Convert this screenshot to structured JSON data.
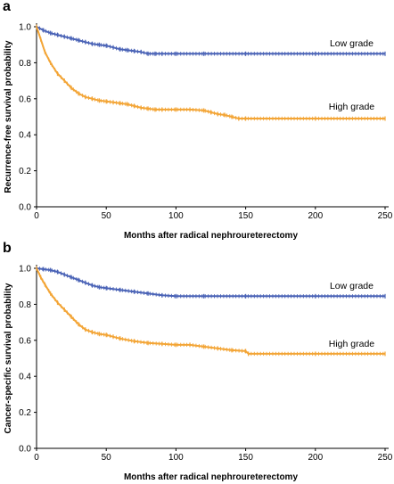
{
  "chart_data": [
    {
      "panel": "a",
      "type": "line",
      "xlabel": "Months after radical nephroureterectomy",
      "ylabel": "Recurrence-free survival probability",
      "xlim": [
        0,
        250
      ],
      "ylim": [
        0,
        1.0
      ],
      "x_ticks": [
        "0",
        "50",
        "100",
        "150",
        "200",
        "250"
      ],
      "y_ticks": [
        "0.0",
        "0.2",
        "0.4",
        "0.6",
        "0.8",
        "1.0"
      ],
      "grid": false,
      "series": [
        {
          "name": "Low grade",
          "color": "#4a63b6",
          "x": [
            0,
            5,
            10,
            15,
            20,
            25,
            30,
            35,
            40,
            45,
            50,
            55,
            60,
            65,
            70,
            75,
            80,
            85,
            90,
            100,
            120,
            150,
            200,
            250
          ],
          "y": [
            1.0,
            0.98,
            0.965,
            0.955,
            0.945,
            0.935,
            0.925,
            0.915,
            0.905,
            0.9,
            0.895,
            0.885,
            0.875,
            0.87,
            0.865,
            0.86,
            0.85,
            0.85,
            0.85,
            0.85,
            0.85,
            0.85,
            0.85,
            0.85
          ]
        },
        {
          "name": "High grade",
          "color": "#f3a536",
          "x": [
            0,
            3,
            6,
            10,
            15,
            20,
            25,
            30,
            35,
            40,
            45,
            50,
            55,
            60,
            65,
            70,
            75,
            80,
            85,
            90,
            100,
            110,
            120,
            125,
            130,
            135,
            140,
            145,
            150,
            200,
            250
          ],
          "y": [
            1.0,
            0.93,
            0.86,
            0.8,
            0.74,
            0.7,
            0.66,
            0.63,
            0.61,
            0.6,
            0.59,
            0.585,
            0.58,
            0.575,
            0.57,
            0.56,
            0.55,
            0.545,
            0.54,
            0.54,
            0.54,
            0.54,
            0.535,
            0.525,
            0.515,
            0.51,
            0.5,
            0.49,
            0.49,
            0.49,
            0.49
          ]
        }
      ],
      "annotations": [
        {
          "text": "Low grade",
          "x": 226,
          "y": 0.89
        },
        {
          "text": "High grade",
          "x": 226,
          "y": 0.54
        }
      ]
    },
    {
      "panel": "b",
      "type": "line",
      "xlabel": "Months after radical nephroureterectomy",
      "ylabel": "Cancer-specific survival probability",
      "xlim": [
        0,
        250
      ],
      "ylim": [
        0,
        1.0
      ],
      "x_ticks": [
        "0",
        "50",
        "100",
        "150",
        "200",
        "250"
      ],
      "y_ticks": [
        "0.0",
        "0.2",
        "0.4",
        "0.6",
        "0.8",
        "1.0"
      ],
      "grid": false,
      "series": [
        {
          "name": "Low grade",
          "color": "#4a63b6",
          "x": [
            0,
            5,
            10,
            15,
            20,
            25,
            30,
            35,
            40,
            45,
            50,
            60,
            70,
            80,
            90,
            100,
            120,
            150,
            200,
            250
          ],
          "y": [
            1.0,
            0.995,
            0.99,
            0.98,
            0.965,
            0.95,
            0.935,
            0.92,
            0.905,
            0.895,
            0.89,
            0.88,
            0.87,
            0.86,
            0.85,
            0.845,
            0.845,
            0.845,
            0.845,
            0.845
          ]
        },
        {
          "name": "High grade",
          "color": "#f3a536",
          "x": [
            0,
            3,
            6,
            10,
            15,
            20,
            25,
            30,
            35,
            40,
            45,
            50,
            55,
            60,
            70,
            80,
            90,
            100,
            110,
            120,
            130,
            140,
            150,
            152,
            200,
            250
          ],
          "y": [
            1.0,
            0.95,
            0.91,
            0.86,
            0.81,
            0.77,
            0.73,
            0.69,
            0.66,
            0.645,
            0.635,
            0.63,
            0.62,
            0.61,
            0.595,
            0.585,
            0.58,
            0.575,
            0.575,
            0.565,
            0.555,
            0.545,
            0.54,
            0.525,
            0.525,
            0.525
          ]
        }
      ],
      "annotations": [
        {
          "text": "Low grade",
          "x": 226,
          "y": 0.885
        },
        {
          "text": "High grade",
          "x": 226,
          "y": 0.565
        }
      ]
    }
  ],
  "panels": [
    {
      "letter": "a"
    },
    {
      "letter": "b"
    }
  ]
}
